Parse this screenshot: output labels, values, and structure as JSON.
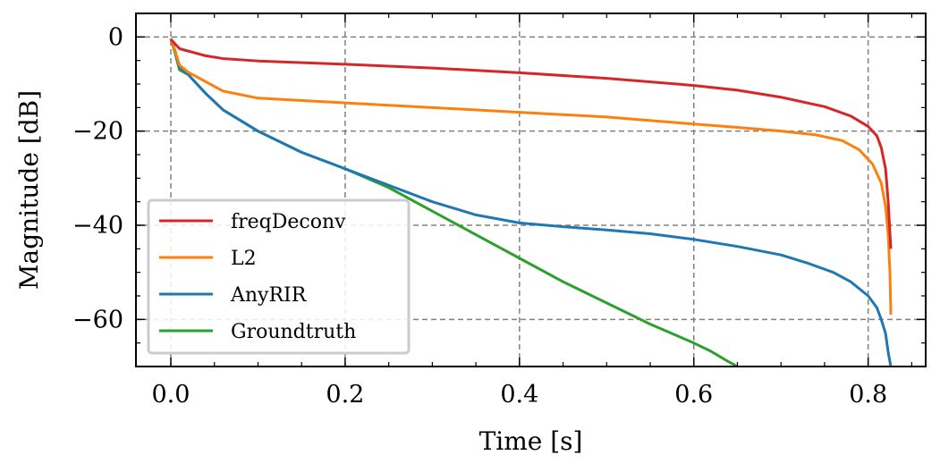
{
  "chart_data": {
    "type": "line",
    "title": "",
    "xlabel": "Time [s]",
    "ylabel": "Magnitude [dB]",
    "xlim": [
      -0.04,
      0.866
    ],
    "ylim": [
      -70,
      5
    ],
    "xticks": [
      0.0,
      0.2,
      0.4,
      0.6,
      0.8
    ],
    "xtick_labels": [
      "0.0",
      "0.2",
      "0.4",
      "0.6",
      "0.8"
    ],
    "yticks": [
      0,
      -20,
      -40,
      -60
    ],
    "ytick_labels": [
      "0",
      "−20",
      "−40",
      "−60"
    ],
    "grid": true,
    "legend_position": "lower-left",
    "series": [
      {
        "name": "freqDeconv",
        "color": "#d62728",
        "x": [
          0.0,
          0.005,
          0.01,
          0.02,
          0.04,
          0.06,
          0.1,
          0.2,
          0.3,
          0.4,
          0.5,
          0.6,
          0.65,
          0.7,
          0.75,
          0.78,
          0.8,
          0.81,
          0.815,
          0.82,
          0.823,
          0.826
        ],
        "y": [
          -0.5,
          -1.5,
          -2.5,
          -3.0,
          -4.0,
          -4.6,
          -5.1,
          -5.8,
          -6.6,
          -7.6,
          -8.8,
          -10.3,
          -11.3,
          -12.8,
          -14.8,
          -16.8,
          -19.0,
          -21.0,
          -23.5,
          -28.0,
          -35.0,
          -45.0
        ]
      },
      {
        "name": "L2",
        "color": "#ff7f0e",
        "x": [
          0.0,
          0.005,
          0.01,
          0.02,
          0.04,
          0.06,
          0.1,
          0.2,
          0.3,
          0.4,
          0.5,
          0.6,
          0.65,
          0.7,
          0.74,
          0.77,
          0.79,
          0.805,
          0.815,
          0.82,
          0.823,
          0.825,
          0.826
        ],
        "y": [
          -0.3,
          -3.0,
          -6.0,
          -7.5,
          -9.5,
          -11.5,
          -13.0,
          -14.0,
          -15.0,
          -16.0,
          -17.0,
          -18.5,
          -19.2,
          -20.0,
          -20.8,
          -22.0,
          -24.0,
          -27.0,
          -31.0,
          -36.0,
          -42.0,
          -50.0,
          -59.0
        ]
      },
      {
        "name": "AnyRIR",
        "color": "#1f77b4",
        "x": [
          0.0,
          0.005,
          0.01,
          0.02,
          0.04,
          0.06,
          0.1,
          0.15,
          0.2,
          0.25,
          0.3,
          0.35,
          0.4,
          0.45,
          0.5,
          0.55,
          0.6,
          0.65,
          0.7,
          0.73,
          0.76,
          0.78,
          0.8,
          0.81,
          0.815,
          0.82,
          0.823,
          0.826
        ],
        "y": [
          -0.3,
          -3.0,
          -6.5,
          -8.0,
          -12.0,
          -15.5,
          -20.0,
          -24.5,
          -28.0,
          -31.5,
          -35.0,
          -37.8,
          -39.5,
          -40.3,
          -41.0,
          -41.8,
          -43.0,
          -44.5,
          -46.3,
          -48.0,
          -50.0,
          -52.0,
          -55.0,
          -57.5,
          -60.0,
          -63.0,
          -67.0,
          -70.0
        ]
      },
      {
        "name": "Groundtruth",
        "color": "#2ca02c",
        "x": [
          0.0,
          0.005,
          0.01,
          0.02,
          0.04,
          0.06,
          0.1,
          0.15,
          0.2,
          0.25,
          0.3,
          0.35,
          0.4,
          0.45,
          0.5,
          0.55,
          0.6,
          0.62,
          0.64,
          0.65
        ],
        "y": [
          -0.3,
          -3.5,
          -7.0,
          -8.0,
          -12.0,
          -15.5,
          -20.0,
          -24.5,
          -28.0,
          -32.0,
          -37.0,
          -42.0,
          -47.0,
          -52.0,
          -56.5,
          -61.0,
          -65.0,
          -66.8,
          -69.0,
          -70.0
        ]
      }
    ]
  }
}
